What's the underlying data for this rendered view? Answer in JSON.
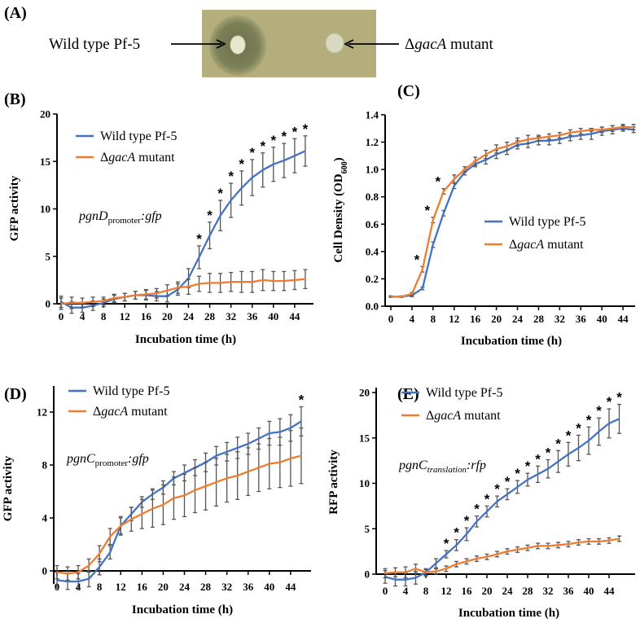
{
  "panel_a": {
    "label": "(A)",
    "wild_label": "Wild type Pf-5",
    "mutant_label": {
      "delta": "Δ",
      "gene": "gacA",
      "rest": " mutant"
    }
  },
  "colors": {
    "wild": "#4472C4",
    "mutant": "#ED7D31",
    "error": "#555555"
  },
  "chart_data": [
    {
      "panel": "(B)",
      "type": "line",
      "ylabel": {
        "main": "GFP activity",
        "sub": "",
        "end": ""
      },
      "xlabel": "Incubation time (h)",
      "ylim": [
        0,
        20
      ],
      "yticks": [
        "0",
        "5",
        "10",
        "15",
        "20"
      ],
      "ytick_values": [
        0,
        5,
        10,
        15,
        20
      ],
      "xticks": [
        "0",
        "4",
        "8",
        "12",
        "16",
        "20",
        "24",
        "28",
        "32",
        "36",
        "40",
        "44"
      ],
      "x": [
        0,
        2,
        4,
        6,
        8,
        10,
        12,
        14,
        16,
        18,
        20,
        22,
        24,
        26,
        28,
        30,
        32,
        34,
        36,
        38,
        40,
        42,
        44,
        46
      ],
      "annotation": {
        "main": "pgnD",
        "sub": "promoter",
        "end": ":gfp",
        "sub_italic": false
      },
      "legend": "top-left",
      "series": [
        {
          "name": "Wild type Pf-5",
          "key": "wild",
          "values": [
            0.2,
            -0.4,
            -0.4,
            -0.2,
            0.1,
            0.5,
            0.7,
            0.9,
            0.9,
            0.8,
            0.8,
            1.5,
            2.7,
            4.9,
            7.2,
            9.3,
            10.9,
            12.2,
            13.3,
            14.1,
            14.7,
            15.1,
            15.6,
            16.1
          ],
          "err": [
            0.6,
            0.6,
            0.5,
            0.5,
            0.4,
            0.4,
            0.4,
            0.4,
            0.5,
            0.5,
            0.6,
            0.6,
            1.0,
            1.2,
            1.4,
            1.6,
            1.8,
            1.8,
            1.9,
            1.8,
            1.8,
            1.8,
            1.8,
            1.6
          ]
        },
        {
          "name": "ΔgacA mutant",
          "key": "mutant",
          "values": [
            0,
            0.1,
            0.1,
            0.2,
            0.3,
            0.6,
            0.7,
            0.9,
            1.0,
            1.1,
            1.4,
            1.7,
            1.8,
            2.1,
            2.2,
            2.2,
            2.3,
            2.3,
            2.3,
            2.5,
            2.4,
            2.4,
            2.5,
            2.6
          ],
          "err": [
            0.6,
            0.6,
            0.5,
            0.5,
            0.4,
            0.4,
            0.4,
            0.4,
            0.5,
            0.5,
            0.6,
            0.6,
            0.8,
            0.8,
            1.0,
            1.0,
            1.0,
            1.1,
            1.1,
            1.1,
            1.0,
            1.0,
            1.0,
            1.0
          ]
        }
      ],
      "significance": {
        "symbol": "*",
        "x": [
          26,
          28,
          30,
          32,
          34,
          36,
          38,
          40,
          42,
          44,
          46
        ]
      }
    },
    {
      "panel": "(C)",
      "type": "line",
      "ylabel": {
        "main": "Cell Density (OD",
        "sub": "600",
        "end": ")"
      },
      "xlabel": "Incubation time (h)",
      "ylim": [
        0,
        1.4
      ],
      "yticks": [
        "0.0",
        "0.2",
        "0.4",
        "0.6",
        "0.8",
        "1.0",
        "1.2",
        "1.4"
      ],
      "ytick_values": [
        0,
        0.2,
        0.4,
        0.6,
        0.8,
        1.0,
        1.2,
        1.4
      ],
      "xticks": [
        "0",
        "4",
        "8",
        "12",
        "16",
        "20",
        "24",
        "28",
        "32",
        "36",
        "40",
        "44"
      ],
      "x": [
        0,
        2,
        4,
        6,
        8,
        10,
        12,
        14,
        16,
        18,
        20,
        22,
        24,
        26,
        28,
        30,
        32,
        34,
        36,
        38,
        40,
        42,
        44,
        46
      ],
      "legend": "center-right",
      "series": [
        {
          "name": "Wild type Pf-5",
          "key": "wild",
          "values": [
            0.07,
            0.07,
            0.08,
            0.13,
            0.45,
            0.68,
            0.88,
            0.98,
            1.04,
            1.07,
            1.11,
            1.14,
            1.18,
            1.19,
            1.21,
            1.21,
            1.22,
            1.24,
            1.25,
            1.26,
            1.28,
            1.29,
            1.3,
            1.29
          ],
          "err": [
            0.005,
            0.005,
            0.01,
            0.01,
            0.02,
            0.02,
            0.02,
            0.02,
            0.02,
            0.03,
            0.03,
            0.03,
            0.03,
            0.03,
            0.03,
            0.03,
            0.03,
            0.03,
            0.03,
            0.04,
            0.03,
            0.03,
            0.02,
            0.02
          ]
        },
        {
          "name": "ΔgacA mutant",
          "key": "mutant",
          "values": [
            0.07,
            0.07,
            0.09,
            0.27,
            0.63,
            0.84,
            0.93,
            1.0,
            1.06,
            1.11,
            1.15,
            1.17,
            1.2,
            1.22,
            1.23,
            1.24,
            1.25,
            1.27,
            1.28,
            1.29,
            1.29,
            1.3,
            1.31,
            1.31
          ],
          "err": [
            0.005,
            0.005,
            0.01,
            0.02,
            0.02,
            0.02,
            0.03,
            0.02,
            0.03,
            0.03,
            0.03,
            0.03,
            0.03,
            0.03,
            0.02,
            0.02,
            0.02,
            0.02,
            0.02,
            0.01,
            0.02,
            0.02,
            0.02,
            0.02
          ]
        }
      ],
      "significance": {
        "symbol": "*",
        "x": [
          6,
          8,
          10
        ]
      }
    },
    {
      "panel": "(D)",
      "type": "line",
      "ylabel": {
        "main": "GFP activity",
        "sub": "",
        "end": ""
      },
      "xlabel": "Incubation time (h)",
      "ylim": [
        -1,
        14
      ],
      "yticks": [
        "0",
        "4",
        "8",
        "12"
      ],
      "ytick_values": [
        0,
        4,
        8,
        12
      ],
      "xticks": [
        "0",
        "4",
        "8",
        "12",
        "16",
        "20",
        "24",
        "28",
        "32",
        "36",
        "40",
        "44"
      ],
      "x": [
        0,
        2,
        4,
        6,
        8,
        10,
        12,
        14,
        16,
        18,
        20,
        22,
        24,
        26,
        28,
        30,
        32,
        34,
        36,
        38,
        40,
        42,
        44,
        46
      ],
      "annotation": {
        "main": "pgnC",
        "sub": "promoter",
        "end": ":gfp",
        "sub_italic": false
      },
      "legend": "top-left",
      "series": [
        {
          "name": "Wild type Pf-5",
          "key": "wild",
          "values": [
            -0.7,
            -0.8,
            -0.8,
            -0.6,
            0.3,
            1.4,
            3.4,
            4.3,
            5.2,
            5.8,
            6.3,
            7.0,
            7.4,
            7.8,
            8.2,
            8.7,
            9.0,
            9.3,
            9.6,
            10.0,
            10.4,
            10.5,
            10.8,
            11.3
          ],
          "err": [
            0.6,
            0.6,
            0.6,
            0.6,
            0.6,
            0.5,
            0.6,
            0.5,
            0.4,
            0.4,
            0.5,
            0.5,
            0.6,
            0.6,
            0.7,
            0.7,
            0.7,
            0.8,
            0.8,
            0.8,
            0.9,
            1.0,
            1.0,
            1.1
          ]
        },
        {
          "name": "ΔgacA mutant",
          "key": "mutant",
          "values": [
            -0.1,
            -0.2,
            -0.1,
            0.4,
            1.3,
            2.6,
            3.4,
            3.9,
            4.3,
            4.7,
            5.0,
            5.5,
            5.7,
            6.1,
            6.4,
            6.7,
            7.0,
            7.2,
            7.5,
            7.8,
            8.1,
            8.2,
            8.5,
            8.7
          ],
          "err": [
            0.5,
            0.5,
            0.5,
            0.5,
            0.6,
            0.6,
            0.7,
            0.9,
            1.1,
            1.4,
            1.5,
            1.6,
            1.6,
            1.7,
            1.8,
            1.8,
            1.8,
            1.8,
            1.8,
            1.8,
            1.9,
            1.9,
            2.1,
            2.1
          ]
        }
      ],
      "significance": {
        "symbol": "*",
        "x": [
          46
        ]
      }
    },
    {
      "panel": "(E)",
      "type": "line",
      "ylabel": {
        "main": "RFP activity",
        "sub": "",
        "end": ""
      },
      "xlabel": "Incubation time (h)",
      "ylim": [
        0,
        20
      ],
      "yticks": [
        "0",
        "5",
        "10",
        "15",
        "20"
      ],
      "ytick_values": [
        0,
        5,
        10,
        15,
        20
      ],
      "xticks": [
        "0",
        "4",
        "8",
        "12",
        "16",
        "20",
        "24",
        "28",
        "32",
        "36",
        "40",
        "44"
      ],
      "x": [
        0,
        2,
        4,
        6,
        8,
        10,
        12,
        14,
        16,
        18,
        20,
        22,
        24,
        26,
        28,
        30,
        32,
        34,
        36,
        38,
        40,
        42,
        44,
        46
      ],
      "annotation": {
        "main": "pgnC",
        "sub": "translation",
        "end": ":rfp",
        "sub_italic": true
      },
      "legend": "top-left",
      "series": [
        {
          "name": "Wild type Pf-5",
          "key": "wild",
          "values": [
            -0.3,
            -0.6,
            -0.6,
            -0.4,
            0.2,
            1.2,
            2.2,
            3.2,
            4.4,
            5.8,
            6.9,
            8.0,
            8.8,
            9.6,
            10.4,
            11.0,
            11.6,
            12.4,
            13.2,
            13.9,
            14.7,
            15.7,
            16.6,
            17.1
          ],
          "err": [
            0.7,
            0.7,
            0.7,
            0.7,
            0.4,
            0.5,
            0.4,
            0.6,
            0.7,
            0.6,
            0.6,
            0.6,
            0.6,
            0.7,
            0.7,
            0.9,
            1.0,
            1.2,
            1.3,
            1.4,
            1.5,
            1.5,
            1.6,
            1.6
          ]
        },
        {
          "name": "ΔgacA mutant",
          "key": "mutant",
          "values": [
            0.1,
            0.2,
            0.2,
            0.6,
            0.2,
            0.3,
            0.6,
            1.1,
            1.4,
            1.7,
            1.9,
            2.2,
            2.5,
            2.7,
            2.9,
            3.1,
            3.1,
            3.2,
            3.3,
            3.5,
            3.6,
            3.6,
            3.7,
            3.9
          ],
          "err": [
            0.5,
            0.5,
            0.6,
            0.5,
            0.3,
            0.3,
            0.3,
            0.3,
            0.3,
            0.3,
            0.3,
            0.3,
            0.3,
            0.3,
            0.3,
            0.3,
            0.3,
            0.3,
            0.3,
            0.3,
            0.3,
            0.3,
            0.3,
            0.3
          ]
        }
      ],
      "significance": {
        "symbol": "*",
        "x": [
          12,
          14,
          16,
          18,
          20,
          22,
          24,
          26,
          28,
          30,
          32,
          34,
          36,
          38,
          40,
          42,
          44,
          46
        ]
      }
    }
  ]
}
